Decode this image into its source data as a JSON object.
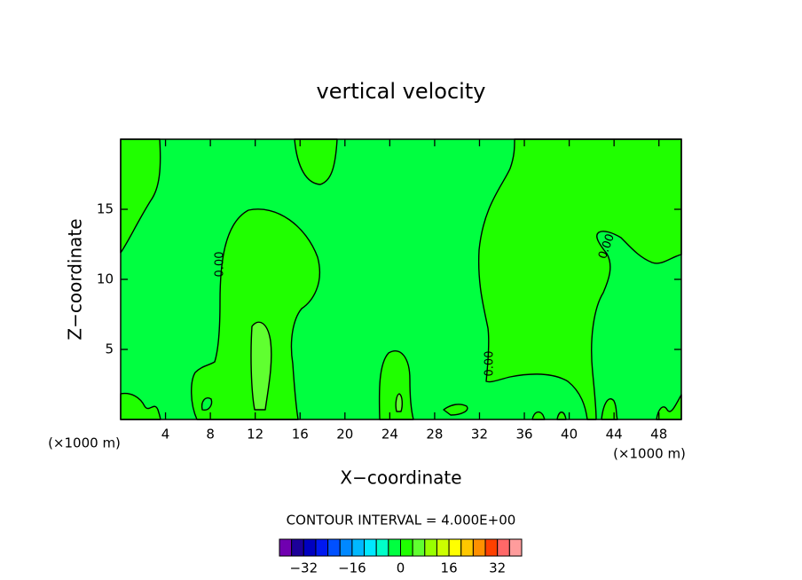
{
  "chart_data": {
    "type": "contour",
    "title": "vertical velocity",
    "x_label": "X−coordinate",
    "y_label": "Z−coordinate",
    "y_unit_label": "(×1000 m)",
    "x_unit_label": "(×1000 m)",
    "xlim": [
      0,
      50
    ],
    "xticks": [
      4,
      8,
      12,
      16,
      20,
      24,
      28,
      32,
      36,
      40,
      44,
      48
    ],
    "ylim": [
      0,
      20
    ],
    "yticks": [
      5,
      10,
      15
    ],
    "contour_labels": [
      "0.00",
      "0.00",
      "0.00"
    ],
    "contour_interval_text": "CONTOUR INTERVAL = 4.000E+00",
    "colorbar": {
      "bins": [
        -40,
        -36,
        -32,
        -28,
        -24,
        -20,
        -16,
        -12,
        -8,
        -4,
        0,
        4,
        8,
        12,
        16,
        20,
        24,
        28,
        32,
        36,
        40
      ],
      "colors": [
        "#7000b0",
        "#1c0098",
        "#0000c0",
        "#0018f0",
        "#0050ff",
        "#0088ff",
        "#00b8ff",
        "#00e8ff",
        "#00ffc8",
        "#00ff40",
        "#20ff00",
        "#60ff30",
        "#98ff00",
        "#ccff00",
        "#ffff00",
        "#ffc800",
        "#ff9000",
        "#ff4000",
        "#ff6868",
        "#ff9c9c"
      ],
      "ticks": [
        {
          "value": -32,
          "label": "−32"
        },
        {
          "value": -16,
          "label": "−16"
        },
        0,
        16,
        32
      ]
    }
  }
}
